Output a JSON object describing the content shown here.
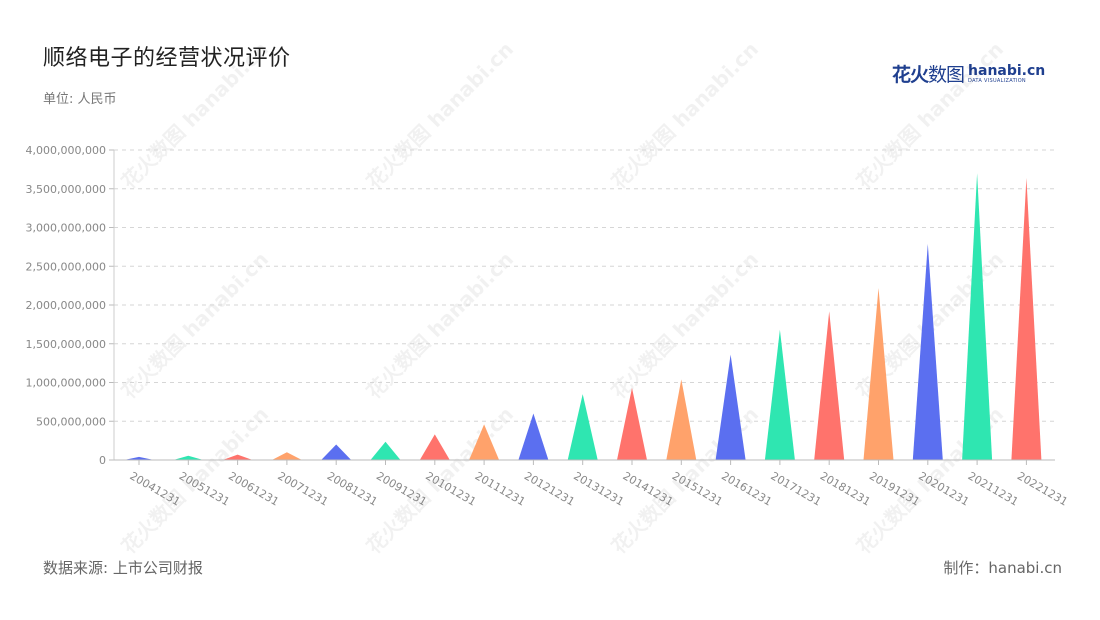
{
  "title": "顺络电子的经营状况评价",
  "unit": "单位: 人民币",
  "source": "数据来源: 上市公司财报",
  "maker": "制作：hanabi.cn",
  "logo": {
    "cn": "花火",
    "cn2": "数图",
    "en": "hanabi.cn",
    "en_sub": "DATA VISUALIZATION"
  },
  "watermark": "花火数图 hanabi.cn",
  "colors": [
    "#5b6ff0",
    "#2fe6b1",
    "#ff736c",
    "#ffa26b"
  ],
  "chart_data": {
    "type": "bar",
    "mark": "triangle",
    "categories": [
      "20041231",
      "20051231",
      "20061231",
      "20071231",
      "20081231",
      "20091231",
      "20101231",
      "20111231",
      "20121231",
      "20131231",
      "20141231",
      "20151231",
      "20161231",
      "20171231",
      "20181231",
      "20191231",
      "20201231",
      "20211231",
      "20221231"
    ],
    "values": [
      40000000,
      55000000,
      70000000,
      100000000,
      200000000,
      235000000,
      330000000,
      460000000,
      600000000,
      850000000,
      930000000,
      1040000000,
      1360000000,
      1680000000,
      1920000000,
      2220000000,
      2790000000,
      3700000000,
      3640000000
    ],
    "ylim": [
      0,
      4000000000
    ],
    "yticks": [
      "0",
      "500,000,000",
      "1,000,000,000",
      "1,500,000,000",
      "2,000,000,000",
      "2,500,000,000",
      "3,000,000,000",
      "3,500,000,000",
      "4,000,000,000"
    ],
    "grid": true,
    "xlabel": "",
    "ylabel": ""
  }
}
